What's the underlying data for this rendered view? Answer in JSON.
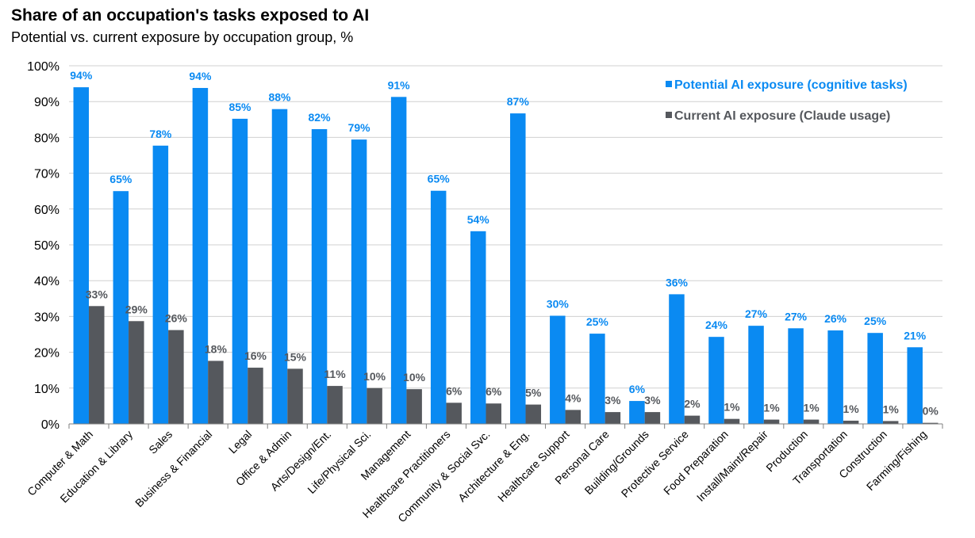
{
  "header": {
    "title": "Share of an occupation's tasks exposed to AI",
    "subtitle": "Potential vs. current exposure by occupation group, %"
  },
  "chart_data": {
    "type": "bar",
    "title": "Share of an occupation's tasks exposed to AI",
    "subtitle": "Potential vs. current exposure by occupation group, %",
    "xlabel": "",
    "ylabel": "",
    "ylim": [
      0,
      100
    ],
    "yticks": [
      "0%",
      "10%",
      "20%",
      "30%",
      "40%",
      "50%",
      "60%",
      "70%",
      "80%",
      "90%",
      "100%"
    ],
    "grid": true,
    "legend_position": "top-right",
    "categories": [
      "Computer & Math",
      "Education & Library",
      "Sales",
      "Business & Financial",
      "Legal",
      "Office & Admin",
      "Arts/Design/Ent.",
      "Life/Physical Sci.",
      "Management",
      "Healthcare Practitioners",
      "Community & Social Svc.",
      "Architecture & Eng.",
      "Healthcare Support",
      "Personal Care",
      "Building/Grounds",
      "Protective Service",
      "Food Preparation",
      "Install/Maint/Repair",
      "Production",
      "Transportation",
      "Construction",
      "Farming/Fishing"
    ],
    "series": [
      {
        "name": "Potential AI exposure (cognitive tasks)",
        "color": "#0A8AF2",
        "label_color": "#0A8AF2",
        "values": [
          94,
          65,
          77.7,
          93.8,
          85.2,
          87.9,
          82.3,
          79.4,
          91.3,
          65.1,
          53.8,
          86.7,
          30.2,
          25.2,
          6.4,
          36.2,
          24.3,
          27.4,
          26.7,
          26.1,
          25.4,
          21.4
        ],
        "labels": [
          "94%",
          "65%",
          "78%",
          "94%",
          "85%",
          "88%",
          "82%",
          "79%",
          "91%",
          "65%",
          "54%",
          "87%",
          "30%",
          "25%",
          "6%",
          "36%",
          "24%",
          "27%",
          "27%",
          "26%",
          "25%",
          "21%"
        ]
      },
      {
        "name": "Current AI exposure (Claude usage)",
        "color": "#55585D",
        "label_color": "#55585D",
        "values": [
          32.9,
          28.7,
          26.2,
          17.6,
          15.7,
          15.4,
          10.6,
          10.0,
          9.7,
          5.9,
          5.7,
          5.4,
          3.9,
          3.3,
          3.3,
          2.3,
          1.4,
          1.2,
          1.2,
          0.9,
          0.8,
          0.3
        ],
        "labels": [
          "33%",
          "29%",
          "26%",
          "18%",
          "16%",
          "15%",
          "11%",
          "10%",
          "10%",
          "6%",
          "6%",
          "5%",
          "4%",
          "3%",
          "3%",
          "2%",
          "1%",
          "1%",
          "1%",
          "1%",
          "1%",
          "0%"
        ]
      }
    ]
  }
}
